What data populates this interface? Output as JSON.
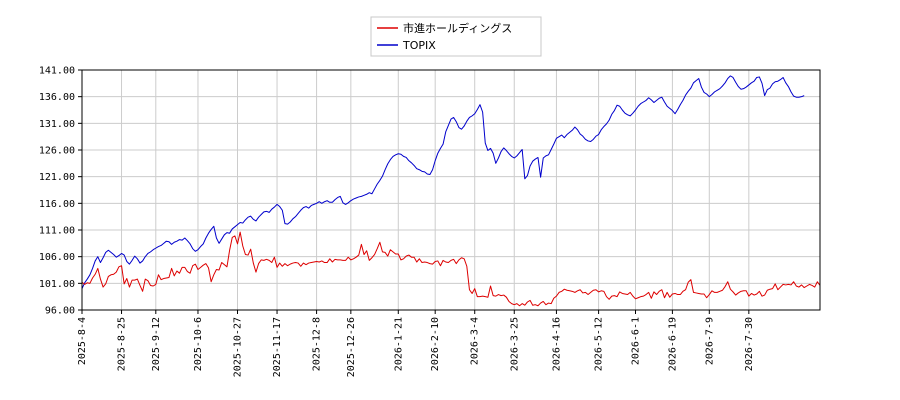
{
  "chart_data": {
    "type": "line",
    "title": "",
    "xlabel": "",
    "ylabel": "",
    "ylim": [
      96.0,
      141.0
    ],
    "y_ticks": [
      "96.00",
      "101.00",
      "106.00",
      "111.00",
      "116.00",
      "121.00",
      "126.00",
      "131.00",
      "136.00",
      "141.00"
    ],
    "x_ticks": [
      "2025-8-4",
      "2025-8-25",
      "2025-9-12",
      "2025-10-6",
      "2025-10-27",
      "2025-11-17",
      "2025-12-8",
      "2025-12-26",
      "2026-1-21",
      "2026-2-10",
      "2026-3-4",
      "2026-3-25",
      "2026-4-16",
      "2026-5-12",
      "2026-6-1",
      "2026-6-19",
      "2026-7-9",
      "2026-7-30"
    ],
    "x_tick_index": [
      0,
      15,
      28,
      44,
      59,
      74,
      89,
      102,
      120,
      134,
      149,
      164,
      180,
      196,
      210,
      224,
      238,
      253
    ],
    "grid": true,
    "legend_position": "top-center",
    "series": [
      {
        "name": "市進ホールディングス",
        "color": "#dd0000",
        "values": [
          101.2,
          100.8,
          101.1,
          101.0,
          102.0,
          102.7,
          103.8,
          101.8,
          100.3,
          100.9,
          102.3,
          102.6,
          102.7,
          103.1,
          104.1,
          104.3,
          100.9,
          101.9,
          100.3,
          101.6,
          101.6,
          101.8,
          100.6,
          99.5,
          101.8,
          101.5,
          100.6,
          100.5,
          100.8,
          102.6,
          101.7,
          101.9,
          102.0,
          102.1,
          103.8,
          102.4,
          103.3,
          102.9,
          104.0,
          104.0,
          103.2,
          102.9,
          104.3,
          104.6,
          103.6,
          104.0,
          104.4,
          104.7,
          103.9,
          101.3,
          102.6,
          103.6,
          103.5,
          104.9,
          104.5,
          104.1,
          107.2,
          109.6,
          109.9,
          108.4,
          110.6,
          108.0,
          106.4,
          106.3,
          107.4,
          104.8,
          103.1,
          104.7,
          105.4,
          105.3,
          105.5,
          105.3,
          104.9,
          105.9,
          104.0,
          104.8,
          104.2,
          104.7,
          104.3,
          104.6,
          104.8,
          104.9,
          104.8,
          104.2,
          104.8,
          104.5,
          104.8,
          104.9,
          105.0,
          105.1,
          105.0,
          105.2,
          104.9,
          104.9,
          105.6,
          105.0,
          105.5,
          105.4,
          105.4,
          105.3,
          105.3,
          105.9,
          105.4,
          105.6,
          105.9,
          106.3,
          108.3,
          106.4,
          107.1,
          105.3,
          105.8,
          106.4,
          107.5,
          108.7,
          106.9,
          106.8,
          106.1,
          107.3,
          106.9,
          106.5,
          106.5,
          105.4,
          105.6,
          106.1,
          106.3,
          105.9,
          105.9,
          105.0,
          105.6,
          104.9,
          105.0,
          104.9,
          104.7,
          104.6,
          105.1,
          105.2,
          104.3,
          105.3,
          105.0,
          104.9,
          105.3,
          105.5,
          104.7,
          105.4,
          105.8,
          105.6,
          104.2,
          99.8,
          99.1,
          100.0,
          98.5,
          98.5,
          98.6,
          98.5,
          98.4,
          100.5,
          98.7,
          98.6,
          98.9,
          98.7,
          98.8,
          98.4,
          97.6,
          97.2,
          97.0,
          97.2,
          96.8,
          97.2,
          96.9,
          97.5,
          97.8,
          96.9,
          97.0,
          96.8,
          97.3,
          97.6,
          97.0,
          97.3,
          97.2,
          98.2,
          98.6,
          99.3,
          99.5,
          99.9,
          99.7,
          99.6,
          99.5,
          99.3,
          99.6,
          99.8,
          99.2,
          99.3,
          98.9,
          99.3,
          99.7,
          99.8,
          99.4,
          99.6,
          99.5,
          98.5,
          98.0,
          98.6,
          98.7,
          98.5,
          99.4,
          99.1,
          99.0,
          98.9,
          99.3,
          98.6,
          98.1,
          98.3,
          98.5,
          98.6,
          98.9,
          99.3,
          98.2,
          99.4,
          98.9,
          99.5,
          99.8,
          98.3,
          99.3,
          98.4,
          99.0,
          99.1,
          98.9,
          98.9,
          99.5,
          99.8,
          101.2,
          101.7,
          99.3,
          99.2,
          99.1,
          99.0,
          99.0,
          98.3,
          98.9,
          99.6,
          99.3,
          99.3,
          99.5,
          99.7,
          100.4,
          101.3,
          99.9,
          99.4,
          98.8,
          99.2,
          99.5,
          99.6,
          99.6,
          98.6,
          99.1,
          98.8,
          99.0,
          99.5,
          98.6,
          98.8,
          99.7,
          99.9,
          100.0,
          100.9,
          99.8,
          100.3,
          100.8,
          100.7,
          100.8,
          100.7,
          101.3,
          100.5,
          100.3,
          100.7,
          100.2,
          100.5,
          100.8,
          100.6,
          100.3,
          101.3,
          100.6
        ],
        "values_note": ""
      },
      {
        "name": "TOPIX",
        "color": "#0000cc",
        "values": [
          100.0,
          101.1,
          101.8,
          102.6,
          103.8,
          105.2,
          106.0,
          104.9,
          105.8,
          106.8,
          107.2,
          106.8,
          106.4,
          105.9,
          106.2,
          106.6,
          106.3,
          105.1,
          104.6,
          105.3,
          106.1,
          105.6,
          104.8,
          105.2,
          106.0,
          106.6,
          106.9,
          107.3,
          107.6,
          107.9,
          108.1,
          108.5,
          108.9,
          108.8,
          108.3,
          108.7,
          108.9,
          109.2,
          109.1,
          109.5,
          109.0,
          108.4,
          107.5,
          107.0,
          107.3,
          107.9,
          108.4,
          109.5,
          110.4,
          111.1,
          111.7,
          109.5,
          108.5,
          109.3,
          110.1,
          110.5,
          110.4,
          111.2,
          111.6,
          112.0,
          112.4,
          112.3,
          112.9,
          113.4,
          113.6,
          113.0,
          112.7,
          113.4,
          113.9,
          114.4,
          114.5,
          114.3,
          114.9,
          115.3,
          115.8,
          115.4,
          114.7,
          112.2,
          112.1,
          112.5,
          113.1,
          113.5,
          114.1,
          114.7,
          115.2,
          115.4,
          115.1,
          115.6,
          115.8,
          116.0,
          116.3,
          116.0,
          116.3,
          116.5,
          116.2,
          116.2,
          116.7,
          117.1,
          117.3,
          116.1,
          115.8,
          116.1,
          116.5,
          116.8,
          117.0,
          117.2,
          117.3,
          117.5,
          117.7,
          118.0,
          117.8,
          118.7,
          119.6,
          120.3,
          121.1,
          122.3,
          123.4,
          124.2,
          124.8,
          125.1,
          125.3,
          125.2,
          124.8,
          124.6,
          124.0,
          123.6,
          123.1,
          122.5,
          122.3,
          122.0,
          121.9,
          121.5,
          121.4,
          122.3,
          124.0,
          125.4,
          126.3,
          127.1,
          129.4,
          130.6,
          131.8,
          132.1,
          131.3,
          130.2,
          129.9,
          130.5,
          131.4,
          132.1,
          132.4,
          132.8,
          133.6,
          134.5,
          133.1,
          127.3,
          125.9,
          126.3,
          125.4,
          123.5,
          124.5,
          125.7,
          126.4,
          125.9,
          125.3,
          124.8,
          124.5,
          124.9,
          125.5,
          126.1,
          120.6,
          121.2,
          123.0,
          123.9,
          124.3,
          124.6,
          120.9,
          124.5,
          124.9,
          125.1,
          126.1,
          127.1,
          128.2,
          128.5,
          128.8,
          128.3,
          128.9,
          129.3,
          129.7,
          130.3,
          129.8,
          129.0,
          128.6,
          128.0,
          127.7,
          127.6,
          128.0,
          128.6,
          128.9,
          129.8,
          130.4,
          130.9,
          131.6,
          132.7,
          133.4,
          134.4,
          134.2,
          133.5,
          132.9,
          132.6,
          132.4,
          132.9,
          133.5,
          134.2,
          134.7,
          135.0,
          135.3,
          135.8,
          135.4,
          134.9,
          135.3,
          135.7,
          135.9,
          135.0,
          134.2,
          133.8,
          133.4,
          132.8,
          133.6,
          134.5,
          135.3,
          136.3,
          137.0,
          137.6,
          138.6,
          139.0,
          139.4,
          137.8,
          136.8,
          136.5,
          136.0,
          136.4,
          136.9,
          137.2,
          137.5,
          138.0,
          138.6,
          139.4,
          139.9,
          139.6,
          138.7,
          137.9,
          137.4,
          137.5,
          137.8,
          138.2,
          138.6,
          138.9,
          139.6,
          139.7,
          138.5,
          136.2,
          137.3,
          137.6,
          138.4,
          138.8,
          138.9,
          139.2,
          139.6,
          138.6,
          137.9,
          136.9,
          136.1,
          135.9,
          135.9,
          136.0,
          136.2
        ],
        "values_note": ""
      }
    ]
  }
}
